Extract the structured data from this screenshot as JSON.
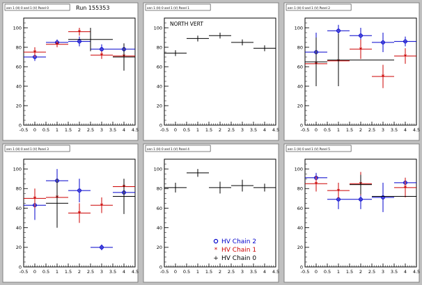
{
  "figure": {
    "run_label": "Run 155353"
  },
  "legend": {
    "entries": [
      {
        "label": "HV Chain 2",
        "marker": "open-circle",
        "color": "#0000cc"
      },
      {
        "label": "HV Chain 1",
        "marker": "star",
        "color": "#cc0000"
      },
      {
        "label": "HV Chain 0",
        "marker": "cross",
        "color": "#000000"
      }
    ]
  },
  "colors": {
    "chain2": "#0000cc",
    "chain1": "#cc0000",
    "chain0": "#000000"
  },
  "chart_data": [
    {
      "type": "scatter",
      "panel_title": "ann 1 (H) 0 and 1 (V) Panel 0",
      "overlay_text": "Run 155353",
      "xlim": [
        -0.5,
        4.5
      ],
      "ylim": [
        0,
        110
      ],
      "xticks": [
        "-0.5",
        "0",
        "0.5",
        "1",
        "1.5",
        "2",
        "2.5",
        "3",
        "3.5",
        "4",
        "4.5"
      ],
      "yticks": [
        "0",
        "20",
        "40",
        "60",
        "80",
        "100"
      ],
      "series": [
        {
          "chain": "chain2",
          "points": [
            {
              "x": 0,
              "y": 70,
              "xerr": 0.5,
              "yerr": 4
            },
            {
              "x": 1,
              "y": 85,
              "xerr": 0.5,
              "yerr": 3
            },
            {
              "x": 2,
              "y": 86,
              "xerr": 0.5,
              "yerr": 5
            },
            {
              "x": 3,
              "y": 78,
              "xerr": 0.5,
              "yerr": 5
            },
            {
              "x": 4,
              "y": 78,
              "xerr": 0.5,
              "yerr": 4
            }
          ]
        },
        {
          "chain": "chain1",
          "points": [
            {
              "x": 0,
              "y": 75,
              "xerr": 0.5,
              "yerr": 5
            },
            {
              "x": 1,
              "y": 83,
              "xerr": 0.5,
              "yerr": 3
            },
            {
              "x": 2,
              "y": 96,
              "xerr": 0.5,
              "yerr": 4
            },
            {
              "x": 3,
              "y": 72,
              "xerr": 0.5,
              "yerr": 4
            },
            {
              "x": 4,
              "y": 71,
              "xerr": 0.5,
              "yerr": 6
            }
          ]
        },
        {
          "chain": "chain0",
          "points": [
            {
              "x": 2.5,
              "y": 88,
              "xerr": 1,
              "yerr": 12
            },
            {
              "x": 4,
              "y": 70,
              "xerr": 0.5,
              "yerr": 14
            }
          ]
        }
      ]
    },
    {
      "type": "scatter",
      "panel_title": "ann 1 (H) 0 and 1 (V) Panel 1",
      "overlay_text": "NORTH VERT",
      "xlim": [
        -0.5,
        4.5
      ],
      "ylim": [
        0,
        110
      ],
      "xticks": [
        "-0.5",
        "0",
        "0.5",
        "1",
        "1.5",
        "2",
        "2.5",
        "3",
        "3.5",
        "4",
        "4.5"
      ],
      "yticks": [
        "0",
        "20",
        "40",
        "60",
        "80",
        "100"
      ],
      "series": [
        {
          "chain": "chain0",
          "points": [
            {
              "x": 0,
              "y": 74,
              "xerr": 0.5,
              "yerr": 3
            },
            {
              "x": 1,
              "y": 89,
              "xerr": 0.5,
              "yerr": 3
            },
            {
              "x": 2,
              "y": 92,
              "xerr": 0.5,
              "yerr": 3
            },
            {
              "x": 3,
              "y": 85,
              "xerr": 0.5,
              "yerr": 3
            },
            {
              "x": 4,
              "y": 79,
              "xerr": 0.5,
              "yerr": 3
            }
          ]
        }
      ]
    },
    {
      "type": "scatter",
      "panel_title": "ann 1 (H) 0 and 1 (V) Panel 2",
      "overlay_text": "",
      "xlim": [
        -0.5,
        4.5
      ],
      "ylim": [
        0,
        110
      ],
      "xticks": [
        "-0.5",
        "0",
        "0.5",
        "1",
        "1.5",
        "2",
        "2.5",
        "3",
        "3.5",
        "4",
        "4.5"
      ],
      "yticks": [
        "0",
        "20",
        "40",
        "60",
        "80",
        "100"
      ],
      "series": [
        {
          "chain": "chain2",
          "points": [
            {
              "x": 0,
              "y": 75,
              "xerr": 0.5,
              "yerr": 20
            },
            {
              "x": 1,
              "y": 97,
              "xerr": 0.5,
              "yerr": 6
            },
            {
              "x": 2,
              "y": 92,
              "xerr": 0.5,
              "yerr": 8
            },
            {
              "x": 3,
              "y": 85,
              "xerr": 0.5,
              "yerr": 10
            },
            {
              "x": 4,
              "y": 86,
              "xerr": 0.5,
              "yerr": 5
            }
          ]
        },
        {
          "chain": "chain1",
          "points": [
            {
              "x": 0,
              "y": 63,
              "xerr": 0.5,
              "yerr": 8
            },
            {
              "x": 1,
              "y": 66,
              "xerr": 0.5,
              "yerr": 10
            },
            {
              "x": 2,
              "y": 78,
              "xerr": 0.5,
              "yerr": 10
            },
            {
              "x": 3,
              "y": 50,
              "xerr": 0.5,
              "yerr": 12
            },
            {
              "x": 4,
              "y": 71,
              "xerr": 0.5,
              "yerr": 8
            }
          ]
        },
        {
          "chain": "chain0",
          "points": [
            {
              "x": 0,
              "y": 65,
              "xerr": 0.5,
              "yerr": 25
            },
            {
              "x": 1,
              "y": 67,
              "xerr": 0.5,
              "yerr": 27
            },
            {
              "x": 2.5,
              "y": 67,
              "xerr": 1,
              "yerr": 0
            }
          ]
        }
      ]
    },
    {
      "type": "scatter",
      "panel_title": "ann 1 (H) 0 and 1 (V) Panel 3",
      "overlay_text": "",
      "xlim": [
        -0.5,
        4.5
      ],
      "ylim": [
        0,
        110
      ],
      "xticks": [
        "-0.5",
        "0",
        "0.5",
        "1",
        "1.5",
        "2",
        "2.5",
        "3",
        "3.5",
        "4",
        "4.5"
      ],
      "yticks": [
        "0",
        "20",
        "40",
        "60",
        "80",
        "100"
      ],
      "series": [
        {
          "chain": "chain2",
          "points": [
            {
              "x": 0,
              "y": 63,
              "xerr": 0.5,
              "yerr": 15
            },
            {
              "x": 1,
              "y": 88,
              "xerr": 0.5,
              "yerr": 12
            },
            {
              "x": 2,
              "y": 78,
              "xerr": 0.5,
              "yerr": 12
            },
            {
              "x": 3,
              "y": 20,
              "xerr": 0.5,
              "yerr": 3
            },
            {
              "x": 4,
              "y": 76,
              "xerr": 0.5,
              "yerr": 8
            }
          ]
        },
        {
          "chain": "chain1",
          "points": [
            {
              "x": 0,
              "y": 70,
              "xerr": 0.5,
              "yerr": 10
            },
            {
              "x": 1,
              "y": 71,
              "xerr": 0.5,
              "yerr": 10
            },
            {
              "x": 2,
              "y": 55,
              "xerr": 0.5,
              "yerr": 10
            },
            {
              "x": 3,
              "y": 63,
              "xerr": 0.5,
              "yerr": 8
            },
            {
              "x": 4,
              "y": 82,
              "xerr": 0.5,
              "yerr": 6
            }
          ]
        },
        {
          "chain": "chain0",
          "points": [
            {
              "x": 1,
              "y": 65,
              "xerr": 0.5,
              "yerr": 25
            },
            {
              "x": 4,
              "y": 72,
              "xerr": 0.5,
              "yerr": 18
            }
          ]
        }
      ]
    },
    {
      "type": "scatter",
      "panel_title": "ann 1 (H) 0 and 1 (V) Panel 4",
      "overlay_text": "",
      "xlim": [
        -0.5,
        4.5
      ],
      "ylim": [
        0,
        110
      ],
      "xticks": [
        "-0.5",
        "0",
        "0.5",
        "1",
        "1.5",
        "2",
        "2.5",
        "3",
        "3.5",
        "4",
        "4.5"
      ],
      "yticks": [
        "0",
        "20",
        "40",
        "60",
        "80",
        "100"
      ],
      "series": [
        {
          "chain": "chain0",
          "points": [
            {
              "x": 0,
              "y": 81,
              "xerr": 0.5,
              "yerr": 5
            },
            {
              "x": 1,
              "y": 96,
              "xerr": 0.5,
              "yerr": 4
            },
            {
              "x": 2,
              "y": 81,
              "xerr": 0.5,
              "yerr": 6
            },
            {
              "x": 3,
              "y": 83,
              "xerr": 0.5,
              "yerr": 6
            },
            {
              "x": 4,
              "y": 81,
              "xerr": 0.5,
              "yerr": 4
            }
          ]
        }
      ]
    },
    {
      "type": "scatter",
      "panel_title": "ann 1 (H) 0 and 1 (V) Panel 5",
      "overlay_text": "",
      "xlim": [
        -0.5,
        4.5
      ],
      "ylim": [
        0,
        110
      ],
      "xticks": [
        "-0.5",
        "0",
        "0.5",
        "1",
        "1.5",
        "2",
        "2.5",
        "3",
        "3.5",
        "4",
        "4.5"
      ],
      "yticks": [
        "0",
        "20",
        "40",
        "60",
        "80",
        "100"
      ],
      "series": [
        {
          "chain": "chain2",
          "points": [
            {
              "x": 0,
              "y": 91,
              "xerr": 0.5,
              "yerr": 5
            },
            {
              "x": 1,
              "y": 69,
              "xerr": 0.5,
              "yerr": 10
            },
            {
              "x": 2,
              "y": 69,
              "xerr": 0.5,
              "yerr": 10
            },
            {
              "x": 3,
              "y": 71,
              "xerr": 0.5,
              "yerr": 15
            },
            {
              "x": 4,
              "y": 86,
              "xerr": 0.5,
              "yerr": 5
            }
          ]
        },
        {
          "chain": "chain1",
          "points": [
            {
              "x": 0,
              "y": 85,
              "xerr": 0.5,
              "yerr": 8
            },
            {
              "x": 1,
              "y": 78,
              "xerr": 0.5,
              "yerr": 8
            },
            {
              "x": 2,
              "y": 85,
              "xerr": 0.5,
              "yerr": 12
            },
            {
              "x": 4,
              "y": 81,
              "xerr": 0.5,
              "yerr": 10
            }
          ]
        },
        {
          "chain": "chain0",
          "points": [
            {
              "x": 2,
              "y": 84,
              "xerr": 0.5,
              "yerr": 10
            },
            {
              "x": 3.5,
              "y": 72,
              "xerr": 1,
              "yerr": 0
            }
          ]
        }
      ]
    }
  ]
}
